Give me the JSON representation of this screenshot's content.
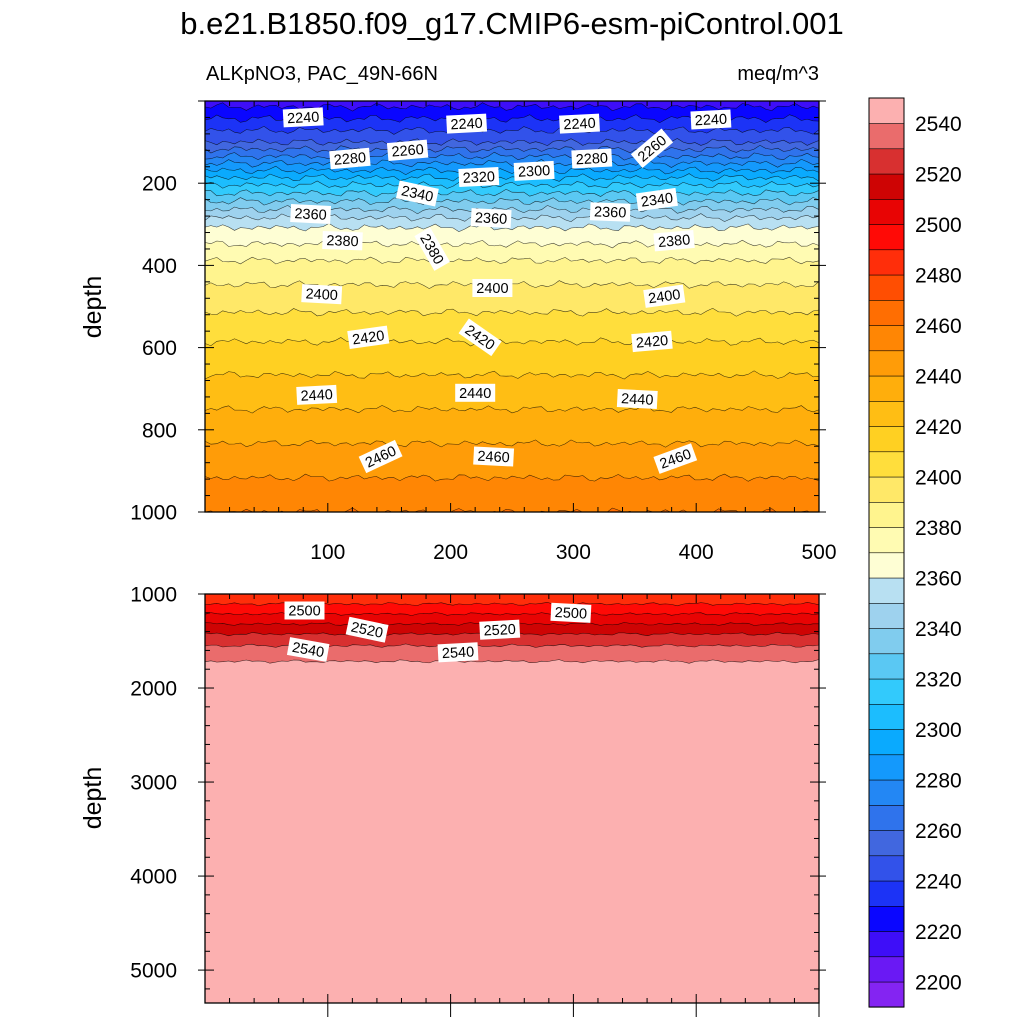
{
  "chart_data": {
    "type": "contour",
    "title": "b.e21.B1850.f09_g17.CMIP6-esm-piControl.001",
    "variable_label": "ALKpNO3, PAC_49N-66N",
    "units": "meq/m^3",
    "x_range": [
      0,
      500
    ],
    "x_ticks": [
      "100",
      "200",
      "300",
      "400",
      "500"
    ],
    "panels": [
      {
        "name": "upper",
        "ylabel": "depth",
        "ylim": [
          0,
          1000
        ],
        "y_ticks": [
          "200",
          "400",
          "600",
          "800",
          "1000"
        ],
        "shallow_field": [
          {
            "depth": 0,
            "value": 2225
          },
          {
            "depth": 100,
            "value": 2260
          },
          {
            "depth": 200,
            "value": 2318
          },
          {
            "depth": 300,
            "value": 2368
          },
          {
            "depth": 400,
            "value": 2393
          },
          {
            "depth": 500,
            "value": 2408
          },
          {
            "depth": 600,
            "value": 2422
          },
          {
            "depth": 700,
            "value": 2434
          },
          {
            "depth": 800,
            "value": 2446
          },
          {
            "depth": 900,
            "value": 2458
          },
          {
            "depth": 1000,
            "value": 2470
          }
        ],
        "contour_labels": [
          {
            "text": "2240",
            "x": 80,
            "depth": 40,
            "rot": -3
          },
          {
            "text": "2240",
            "x": 213,
            "depth": 55,
            "rot": -3
          },
          {
            "text": "2240",
            "x": 305,
            "depth": 55,
            "rot": -3
          },
          {
            "text": "2240",
            "x": 412,
            "depth": 45,
            "rot": -3
          },
          {
            "text": "2280",
            "x": 118,
            "depth": 140,
            "rot": -5
          },
          {
            "text": "2260",
            "x": 165,
            "depth": 120,
            "rot": -5
          },
          {
            "text": "2320",
            "x": 223,
            "depth": 185,
            "rot": -3
          },
          {
            "text": "2300",
            "x": 268,
            "depth": 170,
            "rot": -3
          },
          {
            "text": "2280",
            "x": 315,
            "depth": 140,
            "rot": -3
          },
          {
            "text": "2260",
            "x": 364,
            "depth": 115,
            "rot": -40
          },
          {
            "text": "2340",
            "x": 173,
            "depth": 225,
            "rot": 12
          },
          {
            "text": "2360",
            "x": 86,
            "depth": 275,
            "rot": 3
          },
          {
            "text": "2360",
            "x": 233,
            "depth": 285,
            "rot": 3
          },
          {
            "text": "2360",
            "x": 330,
            "depth": 270,
            "rot": 2
          },
          {
            "text": "2340",
            "x": 368,
            "depth": 240,
            "rot": -8
          },
          {
            "text": "2380",
            "x": 112,
            "depth": 340,
            "rot": 2
          },
          {
            "text": "2380",
            "x": 185,
            "depth": 360,
            "rot": 60
          },
          {
            "text": "2380",
            "x": 382,
            "depth": 340,
            "rot": -5
          },
          {
            "text": "2400",
            "x": 95,
            "depth": 470,
            "rot": 3
          },
          {
            "text": "2400",
            "x": 234,
            "depth": 455,
            "rot": 0
          },
          {
            "text": "2400",
            "x": 374,
            "depth": 475,
            "rot": -8
          },
          {
            "text": "2420",
            "x": 133,
            "depth": 575,
            "rot": -8
          },
          {
            "text": "2420",
            "x": 224,
            "depth": 575,
            "rot": 35
          },
          {
            "text": "2420",
            "x": 364,
            "depth": 585,
            "rot": -5
          },
          {
            "text": "2440",
            "x": 91,
            "depth": 715,
            "rot": -3
          },
          {
            "text": "2440",
            "x": 220,
            "depth": 710,
            "rot": 0
          },
          {
            "text": "2440",
            "x": 352,
            "depth": 725,
            "rot": 3
          },
          {
            "text": "2460",
            "x": 143,
            "depth": 865,
            "rot": -25
          },
          {
            "text": "2460",
            "x": 235,
            "depth": 865,
            "rot": 3
          },
          {
            "text": "2460",
            "x": 383,
            "depth": 870,
            "rot": -20
          }
        ]
      },
      {
        "name": "lower",
        "ylabel": "depth",
        "ylim": [
          1000,
          5350
        ],
        "y_ticks": [
          "1000",
          "2000",
          "3000",
          "4000",
          "5000"
        ],
        "deep_field": [
          {
            "depth": 1000,
            "value": 2490
          },
          {
            "depth": 1500,
            "value": 2537
          },
          {
            "depth": 1750,
            "value": 2552
          },
          {
            "depth": 5350,
            "value": 2552
          }
        ],
        "contour_labels": [
          {
            "text": "2500",
            "x": 81,
            "depth": 1175,
            "rot": 0
          },
          {
            "text": "2520",
            "x": 132,
            "depth": 1380,
            "rot": 12
          },
          {
            "text": "2520",
            "x": 240,
            "depth": 1380,
            "rot": -3
          },
          {
            "text": "2500",
            "x": 298,
            "depth": 1200,
            "rot": 3
          },
          {
            "text": "2540",
            "x": 84,
            "depth": 1590,
            "rot": 10
          },
          {
            "text": "2540",
            "x": 206,
            "depth": 1620,
            "rot": -3
          }
        ]
      }
    ],
    "colorbar": {
      "levels": [
        2200,
        2210,
        2220,
        2230,
        2240,
        2250,
        2260,
        2270,
        2280,
        2290,
        2300,
        2310,
        2320,
        2330,
        2340,
        2350,
        2360,
        2370,
        2380,
        2390,
        2400,
        2410,
        2420,
        2430,
        2440,
        2450,
        2460,
        2470,
        2480,
        2490,
        2500,
        2510,
        2520,
        2530,
        2540,
        2550
      ],
      "colors": [
        "#8424f2",
        "#6a19f4",
        "#3e0ef8",
        "#0a06ff",
        "#1c33f6",
        "#3252ea",
        "#4167df",
        "#2f73ec",
        "#2387f4",
        "#1499fc",
        "#0aaafe",
        "#1cbdfe",
        "#32cafc",
        "#5ac8f3",
        "#80ccee",
        "#9ed2ee",
        "#b8e0f2",
        "#fefed4",
        "#fffbb2",
        "#fff48e",
        "#ffe868",
        "#ffde3c",
        "#ffd022",
        "#ffbe14",
        "#ffae0c",
        "#ff9c08",
        "#ff8604",
        "#ff6e02",
        "#ff4e02",
        "#ff2e0a",
        "#ff0a06",
        "#e80404",
        "#ce0404",
        "#d83030",
        "#ea6c6c",
        "#fcb0b0"
      ],
      "tick_labels": [
        "2200",
        "2220",
        "2240",
        "2260",
        "2280",
        "2300",
        "2320",
        "2340",
        "2360",
        "2380",
        "2400",
        "2420",
        "2440",
        "2460",
        "2480",
        "2500",
        "2520",
        "2540"
      ]
    }
  }
}
